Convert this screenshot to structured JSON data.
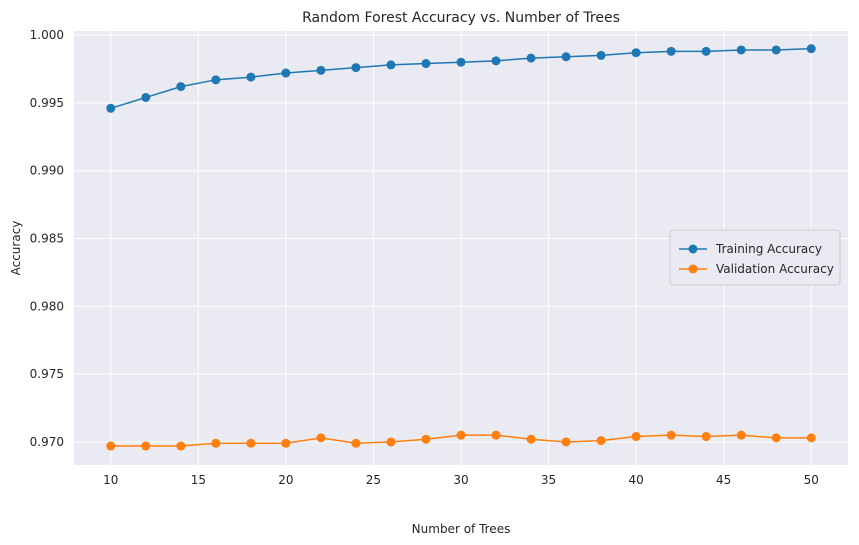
{
  "chart_data": {
    "type": "line",
    "title": "Random Forest Accuracy vs. Number of Trees",
    "xlabel": "Number of Trees",
    "ylabel": "Accuracy",
    "xlim": [
      7.9,
      52.1
    ],
    "ylim": [
      0.9683,
      1.0003
    ],
    "xticks": [
      10,
      15,
      20,
      25,
      30,
      35,
      40,
      45,
      50
    ],
    "xtick_labels": [
      "10",
      "15",
      "20",
      "25",
      "30",
      "35",
      "40",
      "45",
      "50"
    ],
    "yticks": [
      0.97,
      0.975,
      0.98,
      0.985,
      0.99,
      0.995,
      1.0
    ],
    "ytick_labels": [
      "0.970",
      "0.975",
      "0.980",
      "0.985",
      "0.990",
      "0.995",
      "1.000"
    ],
    "grid": true,
    "legend_position": "center-right",
    "x": [
      10,
      12,
      14,
      16,
      18,
      20,
      22,
      24,
      26,
      28,
      30,
      32,
      34,
      36,
      38,
      40,
      42,
      44,
      46,
      48,
      50
    ],
    "series": [
      {
        "name": "Training Accuracy",
        "color": "#1f77b4",
        "marker": "circle",
        "values": [
          0.9946,
          0.9954,
          0.9962,
          0.9967,
          0.9969,
          0.9972,
          0.9974,
          0.9976,
          0.9978,
          0.9979,
          0.998,
          0.9981,
          0.9983,
          0.9984,
          0.9985,
          0.9987,
          0.9988,
          0.9988,
          0.9989,
          0.9989,
          0.999
        ]
      },
      {
        "name": "Validation Accuracy",
        "color": "#ff7f0e",
        "marker": "circle",
        "values": [
          0.9697,
          0.9697,
          0.9697,
          0.9699,
          0.9699,
          0.9699,
          0.9703,
          0.9699,
          0.97,
          0.9702,
          0.9705,
          0.9705,
          0.9702,
          0.97,
          0.9701,
          0.9704,
          0.9705,
          0.9704,
          0.9705,
          0.9703,
          0.9703
        ]
      }
    ]
  }
}
